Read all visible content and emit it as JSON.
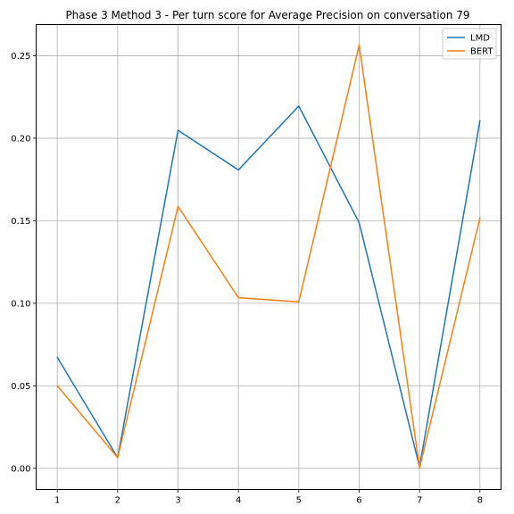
{
  "chart_data": {
    "type": "line",
    "title": "Phase 3 Method 3 - Per turn score for Average Precision on conversation 79",
    "xlabel": "",
    "ylabel": "",
    "x": [
      1,
      2,
      3,
      4,
      5,
      6,
      7,
      8
    ],
    "x_ticks": [
      "1",
      "2",
      "3",
      "4",
      "5",
      "6",
      "7",
      "8"
    ],
    "y_ticks": [
      "0.00",
      "0.05",
      "0.10",
      "0.15",
      "0.20",
      "0.25"
    ],
    "y_tick_values": [
      0,
      0.05,
      0.1,
      0.15,
      0.2,
      0.25
    ],
    "xlim": [
      0.65,
      8.35
    ],
    "ylim": [
      -0.0128,
      0.2689
    ],
    "grid": true,
    "legend_position": "top-right",
    "series": [
      {
        "name": "LMD",
        "color": "#1f77b4",
        "values": [
          0.0672,
          0.0065,
          0.2048,
          0.1808,
          0.2195,
          0.1488,
          0.0008,
          0.2105
        ]
      },
      {
        "name": "BERT",
        "color": "#ff7f0e",
        "values": [
          0.05,
          0.0065,
          0.1587,
          0.1034,
          0.1009,
          0.2565,
          0.0003,
          0.1517
        ]
      }
    ]
  }
}
